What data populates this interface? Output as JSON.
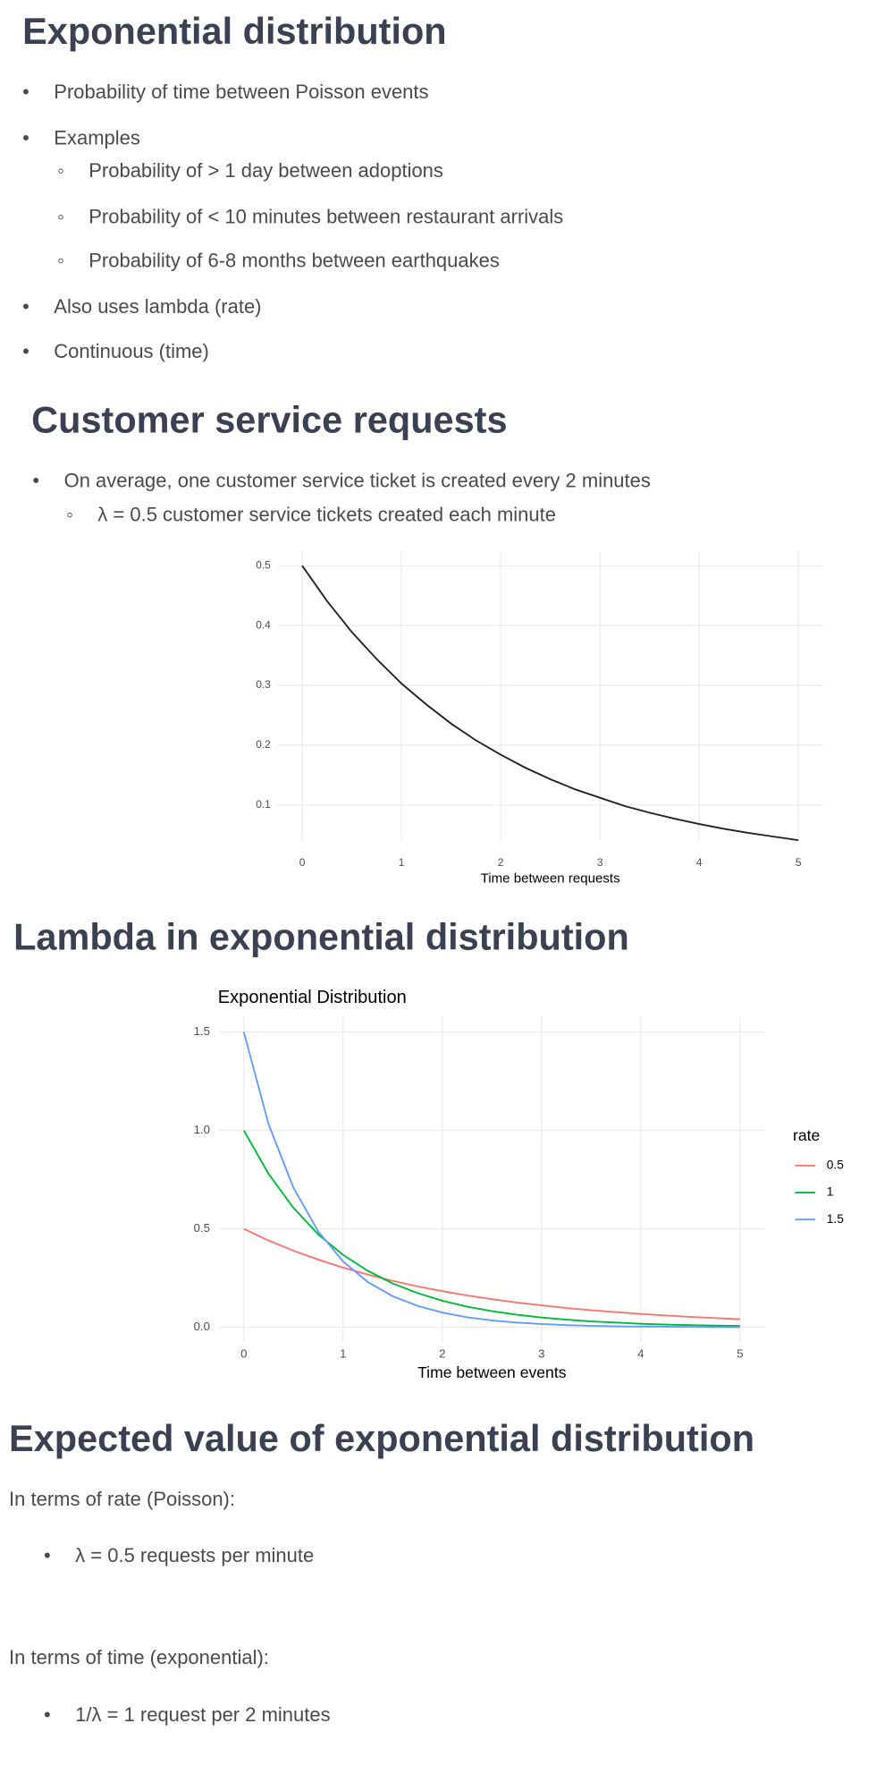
{
  "document": {
    "sections": [
      {
        "title": "Exponential distribution",
        "bullets": [
          "Probability of time between Poisson events",
          "Examples",
          "Also uses lambda (rate)",
          "Continuous (time)"
        ],
        "sub_bullets": [
          "Probability of > 1 day between adoptions",
          "Probability of < 10 minutes between restaurant arrivals",
          "Probability of 6-8 months between earthquakes"
        ]
      },
      {
        "title": "Customer service requests",
        "bullets": [
          "On average, one customer service ticket is created every 2 minutes"
        ],
        "sub_bullets": [
          "λ = 0.5 customer service tickets created each minute"
        ]
      },
      {
        "title": "Lambda in exponential distribution"
      },
      {
        "title": "Expected value of exponential distribution",
        "paragraphs": [
          "In terms of rate (Poisson):",
          "In terms of time (exponential):"
        ],
        "bullets": [
          "λ = 0.5 requests per minute",
          "1/λ = 1 request per 2 minutes"
        ]
      }
    ]
  },
  "chart_data": [
    {
      "type": "line",
      "x_label": "Time between requests",
      "x": [
        0,
        0.25,
        0.5,
        0.75,
        1,
        1.25,
        1.5,
        1.75,
        2,
        2.25,
        2.5,
        2.75,
        3,
        3.25,
        3.5,
        3.75,
        4,
        4.25,
        4.5,
        4.75,
        5
      ],
      "series": [
        {
          "color": "#222222",
          "values": [
            0.5,
            0.441,
            0.389,
            0.344,
            0.303,
            0.268,
            0.236,
            0.208,
            0.184,
            0.162,
            0.143,
            0.126,
            0.112,
            0.098,
            0.087,
            0.077,
            0.068,
            0.06,
            0.053,
            0.047,
            0.041
          ]
        }
      ],
      "xlim": [
        -0.25,
        5.25
      ],
      "xticks": [
        0,
        1,
        2,
        3,
        4,
        5
      ],
      "ylim": [
        0.04,
        0.525
      ],
      "yticks": [
        0.1,
        0.2,
        0.3,
        0.4,
        0.5
      ],
      "grid": true
    },
    {
      "type": "line",
      "title": "Exponential Distribution",
      "x_label": "Time between events",
      "legend_title": "rate",
      "legend": "right",
      "x": [
        0,
        0.25,
        0.5,
        0.75,
        1,
        1.25,
        1.5,
        1.75,
        2,
        2.25,
        2.5,
        2.75,
        3,
        3.25,
        3.5,
        3.75,
        4,
        4.25,
        4.5,
        4.75,
        5
      ],
      "series": [
        {
          "name": "0.5",
          "color": "#F8766D",
          "values": [
            0.5,
            0.441,
            0.389,
            0.344,
            0.303,
            0.268,
            0.236,
            0.208,
            0.184,
            0.162,
            0.143,
            0.126,
            0.112,
            0.098,
            0.087,
            0.077,
            0.068,
            0.06,
            0.053,
            0.047,
            0.041
          ]
        },
        {
          "name": "1",
          "color": "#00BA38",
          "values": [
            1,
            0.779,
            0.607,
            0.472,
            0.368,
            0.287,
            0.223,
            0.174,
            0.135,
            0.105,
            0.082,
            0.064,
            0.05,
            0.039,
            0.03,
            0.024,
            0.018,
            0.014,
            0.011,
            0.009,
            0.007
          ]
        },
        {
          "name": "1.5",
          "color": "#619CFF",
          "values": [
            1.5,
            1.031,
            0.709,
            0.487,
            0.335,
            0.23,
            0.158,
            0.109,
            0.075,
            0.051,
            0.035,
            0.024,
            0.017,
            0.011,
            0.008,
            0.005,
            0.004,
            0.003,
            0.002,
            0.001,
            0.001
          ]
        }
      ],
      "xlim": [
        -0.25,
        5.25
      ],
      "xticks": [
        0,
        1,
        2,
        3,
        4,
        5
      ],
      "ylim": [
        -0.075,
        1.575
      ],
      "yticks": [
        {
          "value": 0,
          "label": "0.0"
        },
        0.5,
        {
          "value": 1,
          "label": "1.0"
        },
        1.5
      ],
      "grid": true
    }
  ]
}
